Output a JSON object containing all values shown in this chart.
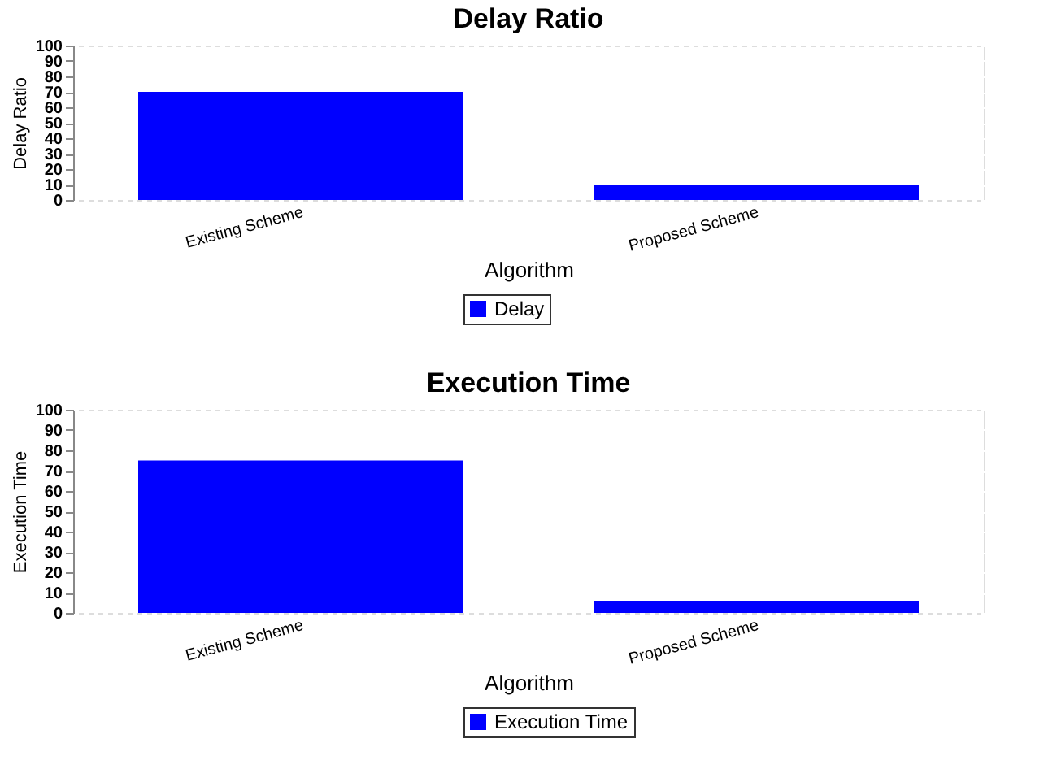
{
  "chart_data": [
    {
      "type": "bar",
      "title": "Delay Ratio",
      "xlabel": "Algorithm",
      "ylabel": "Delay Ratio",
      "categories": [
        "Existing Scheme",
        "Proposed Scheme"
      ],
      "series": [
        {
          "name": "Delay",
          "color": "#0000ff",
          "values": [
            70,
            10
          ]
        }
      ],
      "ylim": [
        0,
        100
      ],
      "yticks": [
        0,
        10,
        20,
        30,
        40,
        50,
        60,
        70,
        80,
        90,
        100
      ],
      "grid": "y",
      "legend": "bottom"
    },
    {
      "type": "bar",
      "title": "Execution Time",
      "xlabel": "Algorithm",
      "ylabel": "Execution Time",
      "categories": [
        "Existing Scheme",
        "Proposed Scheme"
      ],
      "series": [
        {
          "name": "Execution Time",
          "color": "#0000ff",
          "values": [
            75,
            6
          ]
        }
      ],
      "ylim": [
        0,
        100
      ],
      "yticks": [
        0,
        10,
        20,
        30,
        40,
        50,
        60,
        70,
        80,
        90,
        100
      ],
      "grid": "y",
      "legend": "bottom"
    }
  ]
}
